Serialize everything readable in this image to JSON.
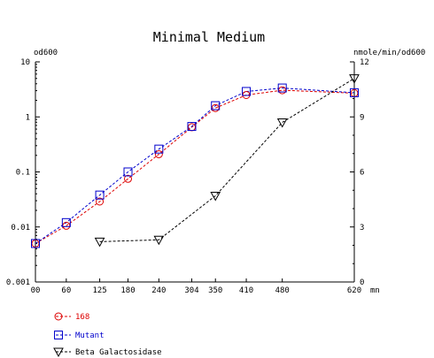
{
  "chart_data": {
    "type": "line",
    "title": "Minimal Medium",
    "y_left_label": "od600",
    "y_right_label": "nmole/min/od600",
    "x_unit_label": "mn",
    "x_ticks": [
      0,
      60,
      125,
      180,
      240,
      304,
      350,
      410,
      480,
      620
    ],
    "x_tick_labels": [
      "00",
      "60",
      "125",
      "180",
      "240",
      "304",
      "350",
      "410",
      "480",
      "620"
    ],
    "xlim": [
      0,
      620
    ],
    "y_left_scale": "log",
    "y_left_ticks": [
      0.001,
      0.01,
      0.1,
      1,
      10
    ],
    "y_left_tick_labels": [
      "0.001",
      "0.01",
      "0.1",
      "1",
      "10"
    ],
    "y_left_lim": [
      0.001,
      10
    ],
    "y_right_ticks": [
      0,
      3,
      6,
      9,
      12
    ],
    "y_right_tick_labels": [
      "0",
      "3",
      "6",
      "9",
      "12"
    ],
    "y_right_lim": [
      0,
      12
    ],
    "grid": false,
    "legend_position": "bottom-left",
    "series": [
      {
        "name": "168",
        "axis": "left",
        "marker": "circle",
        "color": "#dd0000",
        "line_color": "#dd0000",
        "legend_text_color": "#dd0000",
        "x": [
          0,
          60,
          125,
          180,
          240,
          304,
          350,
          410,
          480,
          620
        ],
        "y": [
          0.005,
          0.0105,
          0.029,
          0.075,
          0.21,
          0.65,
          1.45,
          2.5,
          3.05,
          2.7
        ]
      },
      {
        "name": "Mutant",
        "axis": "left",
        "marker": "square",
        "color": "#0000cc",
        "line_color": "#0000cc",
        "legend_text_color": "#0000cc",
        "x": [
          0,
          60,
          125,
          180,
          240,
          304,
          350,
          410,
          480,
          620
        ],
        "y": [
          0.005,
          0.012,
          0.038,
          0.1,
          0.26,
          0.67,
          1.6,
          2.9,
          3.35,
          2.75
        ]
      },
      {
        "name": "Beta Galactosidase",
        "axis": "right",
        "marker": "triangle-down",
        "color": "#000000",
        "line_color": "#000000",
        "legend_text_color": "#000000",
        "x": [
          125,
          240,
          350,
          480,
          620
        ],
        "y": [
          2.2,
          2.3,
          4.7,
          8.7,
          11.1
        ]
      }
    ]
  }
}
